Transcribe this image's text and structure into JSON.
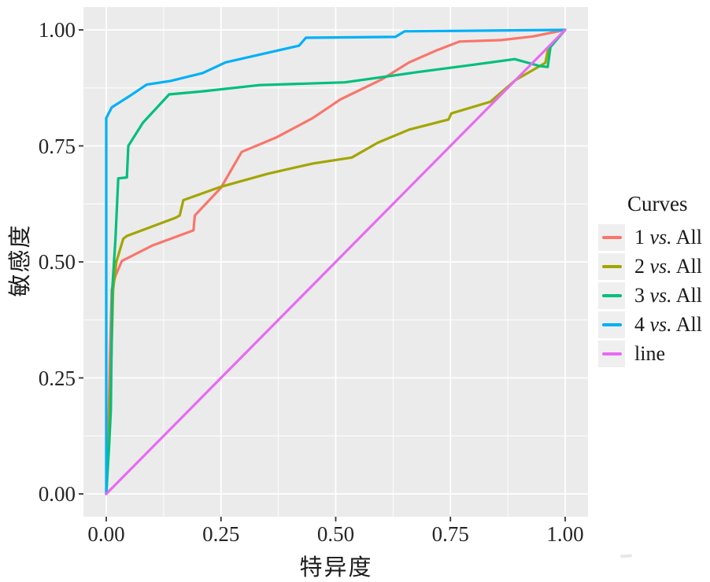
{
  "legend": {
    "title": "Curves"
  },
  "chart_data": {
    "type": "line",
    "title": "",
    "xlabel": "特异度",
    "ylabel": "敏感度",
    "xlim": [
      0,
      1
    ],
    "ylim": [
      0,
      1
    ],
    "x_ticks": [
      "0.00",
      "0.25",
      "0.50",
      "0.75",
      "1.00"
    ],
    "x_tick_values": [
      0,
      0.25,
      0.5,
      0.75,
      1.0
    ],
    "y_ticks": [
      "0.00",
      "0.25",
      "0.50",
      "0.75",
      "1.00"
    ],
    "y_tick_values": [
      0,
      0.25,
      0.5,
      0.75,
      1.0
    ],
    "grid": "major and minor white gridlines on gray panel",
    "legend_position": "right",
    "panel_bg": "#ebebeb",
    "grid_color": "#ffffff",
    "tick_color": "#333333",
    "text_color": "#262626",
    "series": [
      {
        "name": "1 vs. All",
        "color": "#F8766D",
        "points": [
          [
            0,
            0
          ],
          [
            0.004,
            0.1
          ],
          [
            0.008,
            0.3
          ],
          [
            0.012,
            0.44
          ],
          [
            0.02,
            0.47
          ],
          [
            0.034,
            0.502
          ],
          [
            0.1,
            0.535
          ],
          [
            0.19,
            0.568
          ],
          [
            0.193,
            0.6
          ],
          [
            0.25,
            0.66
          ],
          [
            0.295,
            0.737
          ],
          [
            0.37,
            0.768
          ],
          [
            0.45,
            0.81
          ],
          [
            0.51,
            0.85
          ],
          [
            0.6,
            0.893
          ],
          [
            0.66,
            0.93
          ],
          [
            0.72,
            0.956
          ],
          [
            0.77,
            0.975
          ],
          [
            0.86,
            0.978
          ],
          [
            0.93,
            0.986
          ],
          [
            1,
            1
          ]
        ]
      },
      {
        "name": "2 vs. All",
        "color": "#A3A500",
        "points": [
          [
            0,
            0
          ],
          [
            0.005,
            0.1
          ],
          [
            0.01,
            0.25
          ],
          [
            0.015,
            0.44
          ],
          [
            0.022,
            0.5
          ],
          [
            0.037,
            0.55
          ],
          [
            0.045,
            0.556
          ],
          [
            0.151,
            0.595
          ],
          [
            0.16,
            0.6
          ],
          [
            0.168,
            0.633
          ],
          [
            0.25,
            0.662
          ],
          [
            0.352,
            0.69
          ],
          [
            0.45,
            0.712
          ],
          [
            0.535,
            0.725
          ],
          [
            0.592,
            0.757
          ],
          [
            0.66,
            0.785
          ],
          [
            0.746,
            0.807
          ],
          [
            0.752,
            0.82
          ],
          [
            0.837,
            0.845
          ],
          [
            0.892,
            0.892
          ],
          [
            0.957,
            0.929
          ],
          [
            0.963,
            0.96
          ],
          [
            1,
            1
          ]
        ]
      },
      {
        "name": "3 vs. All",
        "color": "#00BF7D",
        "points": [
          [
            0,
            0
          ],
          [
            0.006,
            0.1
          ],
          [
            0.01,
            0.18
          ],
          [
            0.013,
            0.44
          ],
          [
            0.02,
            0.55
          ],
          [
            0.026,
            0.68
          ],
          [
            0.045,
            0.682
          ],
          [
            0.048,
            0.75
          ],
          [
            0.08,
            0.8
          ],
          [
            0.137,
            0.861
          ],
          [
            0.214,
            0.868
          ],
          [
            0.334,
            0.881
          ],
          [
            0.52,
            0.887
          ],
          [
            0.678,
            0.909
          ],
          [
            0.8,
            0.925
          ],
          [
            0.89,
            0.937
          ],
          [
            0.945,
            0.922
          ],
          [
            0.962,
            0.92
          ],
          [
            0.968,
            0.963
          ],
          [
            1,
            1
          ]
        ]
      },
      {
        "name": "4 vs. All",
        "color": "#00B0F6",
        "points": [
          [
            0,
            0
          ],
          [
            0,
            0.81
          ],
          [
            0.012,
            0.833
          ],
          [
            0.05,
            0.857
          ],
          [
            0.088,
            0.882
          ],
          [
            0.14,
            0.89
          ],
          [
            0.21,
            0.907
          ],
          [
            0.26,
            0.93
          ],
          [
            0.34,
            0.948
          ],
          [
            0.42,
            0.966
          ],
          [
            0.435,
            0.983
          ],
          [
            0.63,
            0.985
          ],
          [
            0.65,
            0.997
          ],
          [
            1,
            1
          ]
        ]
      },
      {
        "name": "line",
        "color": "#E76BF3",
        "points": [
          [
            0,
            0
          ],
          [
            1,
            1
          ]
        ]
      }
    ]
  }
}
